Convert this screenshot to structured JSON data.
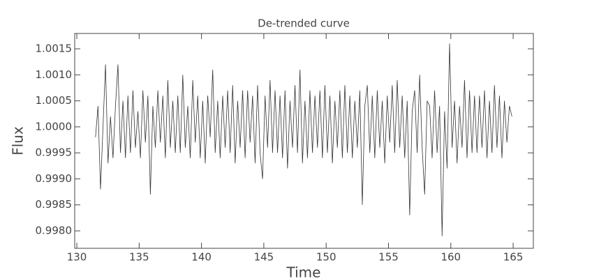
{
  "chart_data": {
    "type": "line",
    "title": "De-trended curve",
    "xlabel": "Time",
    "ylabel": "Flux",
    "color": "#333333",
    "x": [
      131.5,
      131.7,
      131.9,
      132.1,
      132.3,
      132.5,
      132.7,
      132.9,
      133.1,
      133.3,
      133.5,
      133.7,
      133.9,
      134.1,
      134.3,
      134.5,
      134.7,
      134.9,
      135.1,
      135.3,
      135.5,
      135.7,
      135.9,
      136.1,
      136.3,
      136.5,
      136.7,
      136.9,
      137.1,
      137.3,
      137.5,
      137.7,
      137.9,
      138.1,
      138.3,
      138.5,
      138.7,
      138.9,
      139.1,
      139.3,
      139.5,
      139.7,
      139.9,
      140.1,
      140.3,
      140.5,
      140.7,
      140.9,
      141.1,
      141.3,
      141.5,
      141.7,
      141.9,
      142.1,
      142.3,
      142.5,
      142.7,
      142.9,
      143.1,
      143.3,
      143.5,
      143.7,
      143.9,
      144.1,
      144.3,
      144.5,
      144.7,
      144.9,
      145.1,
      145.3,
      145.5,
      145.7,
      145.9,
      146.1,
      146.3,
      146.5,
      146.7,
      146.9,
      147.1,
      147.3,
      147.5,
      147.7,
      147.9,
      148.1,
      148.3,
      148.5,
      148.7,
      148.9,
      149.1,
      149.3,
      149.5,
      149.7,
      149.9,
      150.1,
      150.3,
      150.5,
      150.7,
      150.9,
      151.1,
      151.3,
      151.5,
      151.7,
      151.9,
      152.1,
      152.3,
      152.5,
      152.7,
      152.9,
      153.1,
      153.3,
      153.5,
      153.7,
      153.9,
      154.1,
      154.3,
      154.5,
      154.7,
      154.9,
      155.1,
      155.3,
      155.5,
      155.7,
      155.9,
      156.1,
      156.3,
      156.5,
      156.7,
      156.9,
      157.1,
      157.3,
      157.5,
      157.7,
      157.9,
      158.1,
      158.3,
      158.5,
      158.7,
      158.9,
      159.1,
      159.3,
      159.5,
      159.7,
      159.9,
      160.1,
      160.3,
      160.5,
      160.7,
      160.9,
      161.1,
      161.3,
      161.5,
      161.7,
      161.9,
      162.1,
      162.3,
      162.5,
      162.7,
      162.9,
      163.1,
      163.3,
      163.5,
      163.7,
      163.9,
      164.1,
      164.3,
      164.5,
      164.7,
      164.9
    ],
    "values": [
      0.9998,
      1.0004,
      0.9988,
      1.0,
      1.0012,
      0.9993,
      1.0002,
      0.9994,
      1.0004,
      1.0012,
      0.9995,
      1.0005,
      0.9994,
      1.0006,
      0.9995,
      1.0007,
      0.9996,
      1.0003,
      0.9994,
      1.0007,
      0.9997,
      1.0006,
      0.9987,
      1.0004,
      0.9996,
      1.0007,
      0.9997,
      1.0006,
      0.9994,
      1.0009,
      0.9996,
      1.0005,
      0.9995,
      1.0006,
      0.9995,
      1.001,
      0.9996,
      1.0004,
      0.9994,
      1.0009,
      0.9997,
      1.0006,
      0.9994,
      1.0005,
      0.9993,
      1.0006,
      0.9998,
      1.0011,
      0.9995,
      1.0005,
      0.9994,
      1.0006,
      0.9996,
      1.0007,
      0.9995,
      1.0008,
      0.9993,
      1.0005,
      0.9996,
      1.0007,
      0.9994,
      1.0007,
      0.9997,
      1.0006,
      0.9993,
      1.0008,
      0.9995,
      0.999,
      1.0006,
      0.9996,
      1.0009,
      0.9995,
      1.0007,
      0.9995,
      1.0006,
      0.9994,
      1.0007,
      0.9992,
      1.0005,
      0.9996,
      1.0008,
      0.9995,
      1.0011,
      0.9993,
      1.0005,
      0.9994,
      1.0007,
      0.9995,
      1.0006,
      0.9996,
      1.0007,
      0.9994,
      1.0008,
      0.9995,
      1.0006,
      0.9993,
      1.0005,
      0.9996,
      1.0007,
      0.9994,
      1.0008,
      0.9995,
      1.0006,
      0.9994,
      1.0005,
      0.9996,
      1.0007,
      0.9985,
      1.0004,
      1.0008,
      0.9995,
      1.0006,
      0.9994,
      1.0007,
      0.9996,
      1.0005,
      0.9993,
      1.0006,
      0.9997,
      1.0008,
      0.9995,
      1.0009,
      0.9996,
      1.0006,
      0.9994,
      1.0005,
      0.9983,
      1.0003,
      1.0007,
      0.9995,
      1.001,
      0.9996,
      0.9987,
      1.0005,
      1.0004,
      0.9994,
      1.0007,
      0.9995,
      1.0004,
      0.9979,
      1.0003,
      0.9992,
      1.0016,
      0.9996,
      1.0005,
      0.9993,
      1.0004,
      0.9996,
      1.0009,
      0.9994,
      1.0007,
      0.9995,
      1.0006,
      0.9995,
      1.0006,
      0.9996,
      1.0007,
      0.9994,
      1.0005,
      0.9995,
      1.0008,
      0.9996,
      1.0006,
      0.9994,
      1.0005,
      0.9997,
      1.0004,
      1.0002
    ],
    "xlim": [
      129.83,
      166.62
    ],
    "ylim": [
      0.997665,
      1.001795
    ],
    "xticks": [
      130,
      135,
      140,
      145,
      150,
      155,
      160,
      165
    ],
    "yticks": [
      {
        "value": 0.998,
        "label": "0.9980"
      },
      0.9985,
      {
        "value": 0.999,
        "label": "0.9990"
      },
      0.9995,
      {
        "value": 1,
        "label": "1.0000"
      },
      1.0005,
      {
        "value": 1.001,
        "label": "1.0010"
      },
      1.0015
    ],
    "grid": false
  }
}
